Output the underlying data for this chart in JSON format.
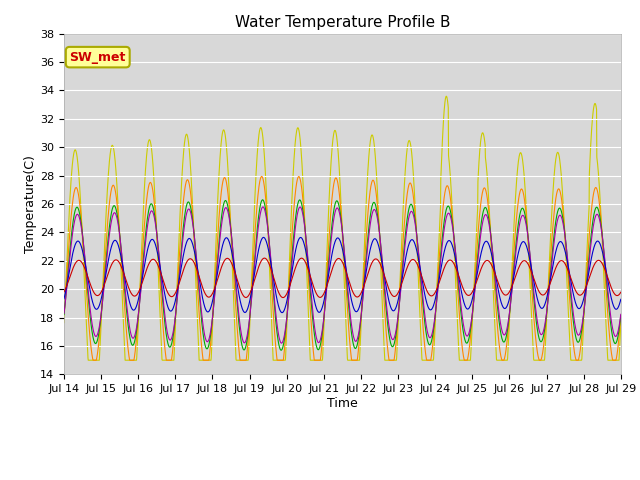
{
  "title": "Water Temperature Profile B",
  "xlabel": "Time",
  "ylabel": "Temperature(C)",
  "ylim": [
    14,
    38
  ],
  "yticks": [
    14,
    16,
    18,
    20,
    22,
    24,
    26,
    28,
    30,
    32,
    34,
    36,
    38
  ],
  "xtick_labels": [
    "Jul 14",
    "Jul 15",
    "Jul 16",
    "Jul 17",
    "Jul 18",
    "Jul 19",
    "Jul 20",
    "Jul 21",
    "Jul 22",
    "Jul 23",
    "Jul 24",
    "Jul 25",
    "Jul 26",
    "Jul 27",
    "Jul 28",
    "Jul 29"
  ],
  "line_colors": {
    "0cm": "#cc0000",
    "+5cm": "#0000cc",
    "+10cm": "#00aa00",
    "+30cm": "#ff8800",
    "+50cm": "#cccc00",
    "TC_temp11": "#aa00aa"
  },
  "annotation_text": "SW_met",
  "annotation_color": "#cc0000",
  "annotation_bg": "#ffff99",
  "annotation_border": "#aaaa00",
  "plot_bg_color": "#d8d8d8",
  "title_fontsize": 11,
  "axis_fontsize": 9,
  "tick_fontsize": 8,
  "legend_fontsize": 8,
  "n_days": 15,
  "pts_per_day": 144
}
